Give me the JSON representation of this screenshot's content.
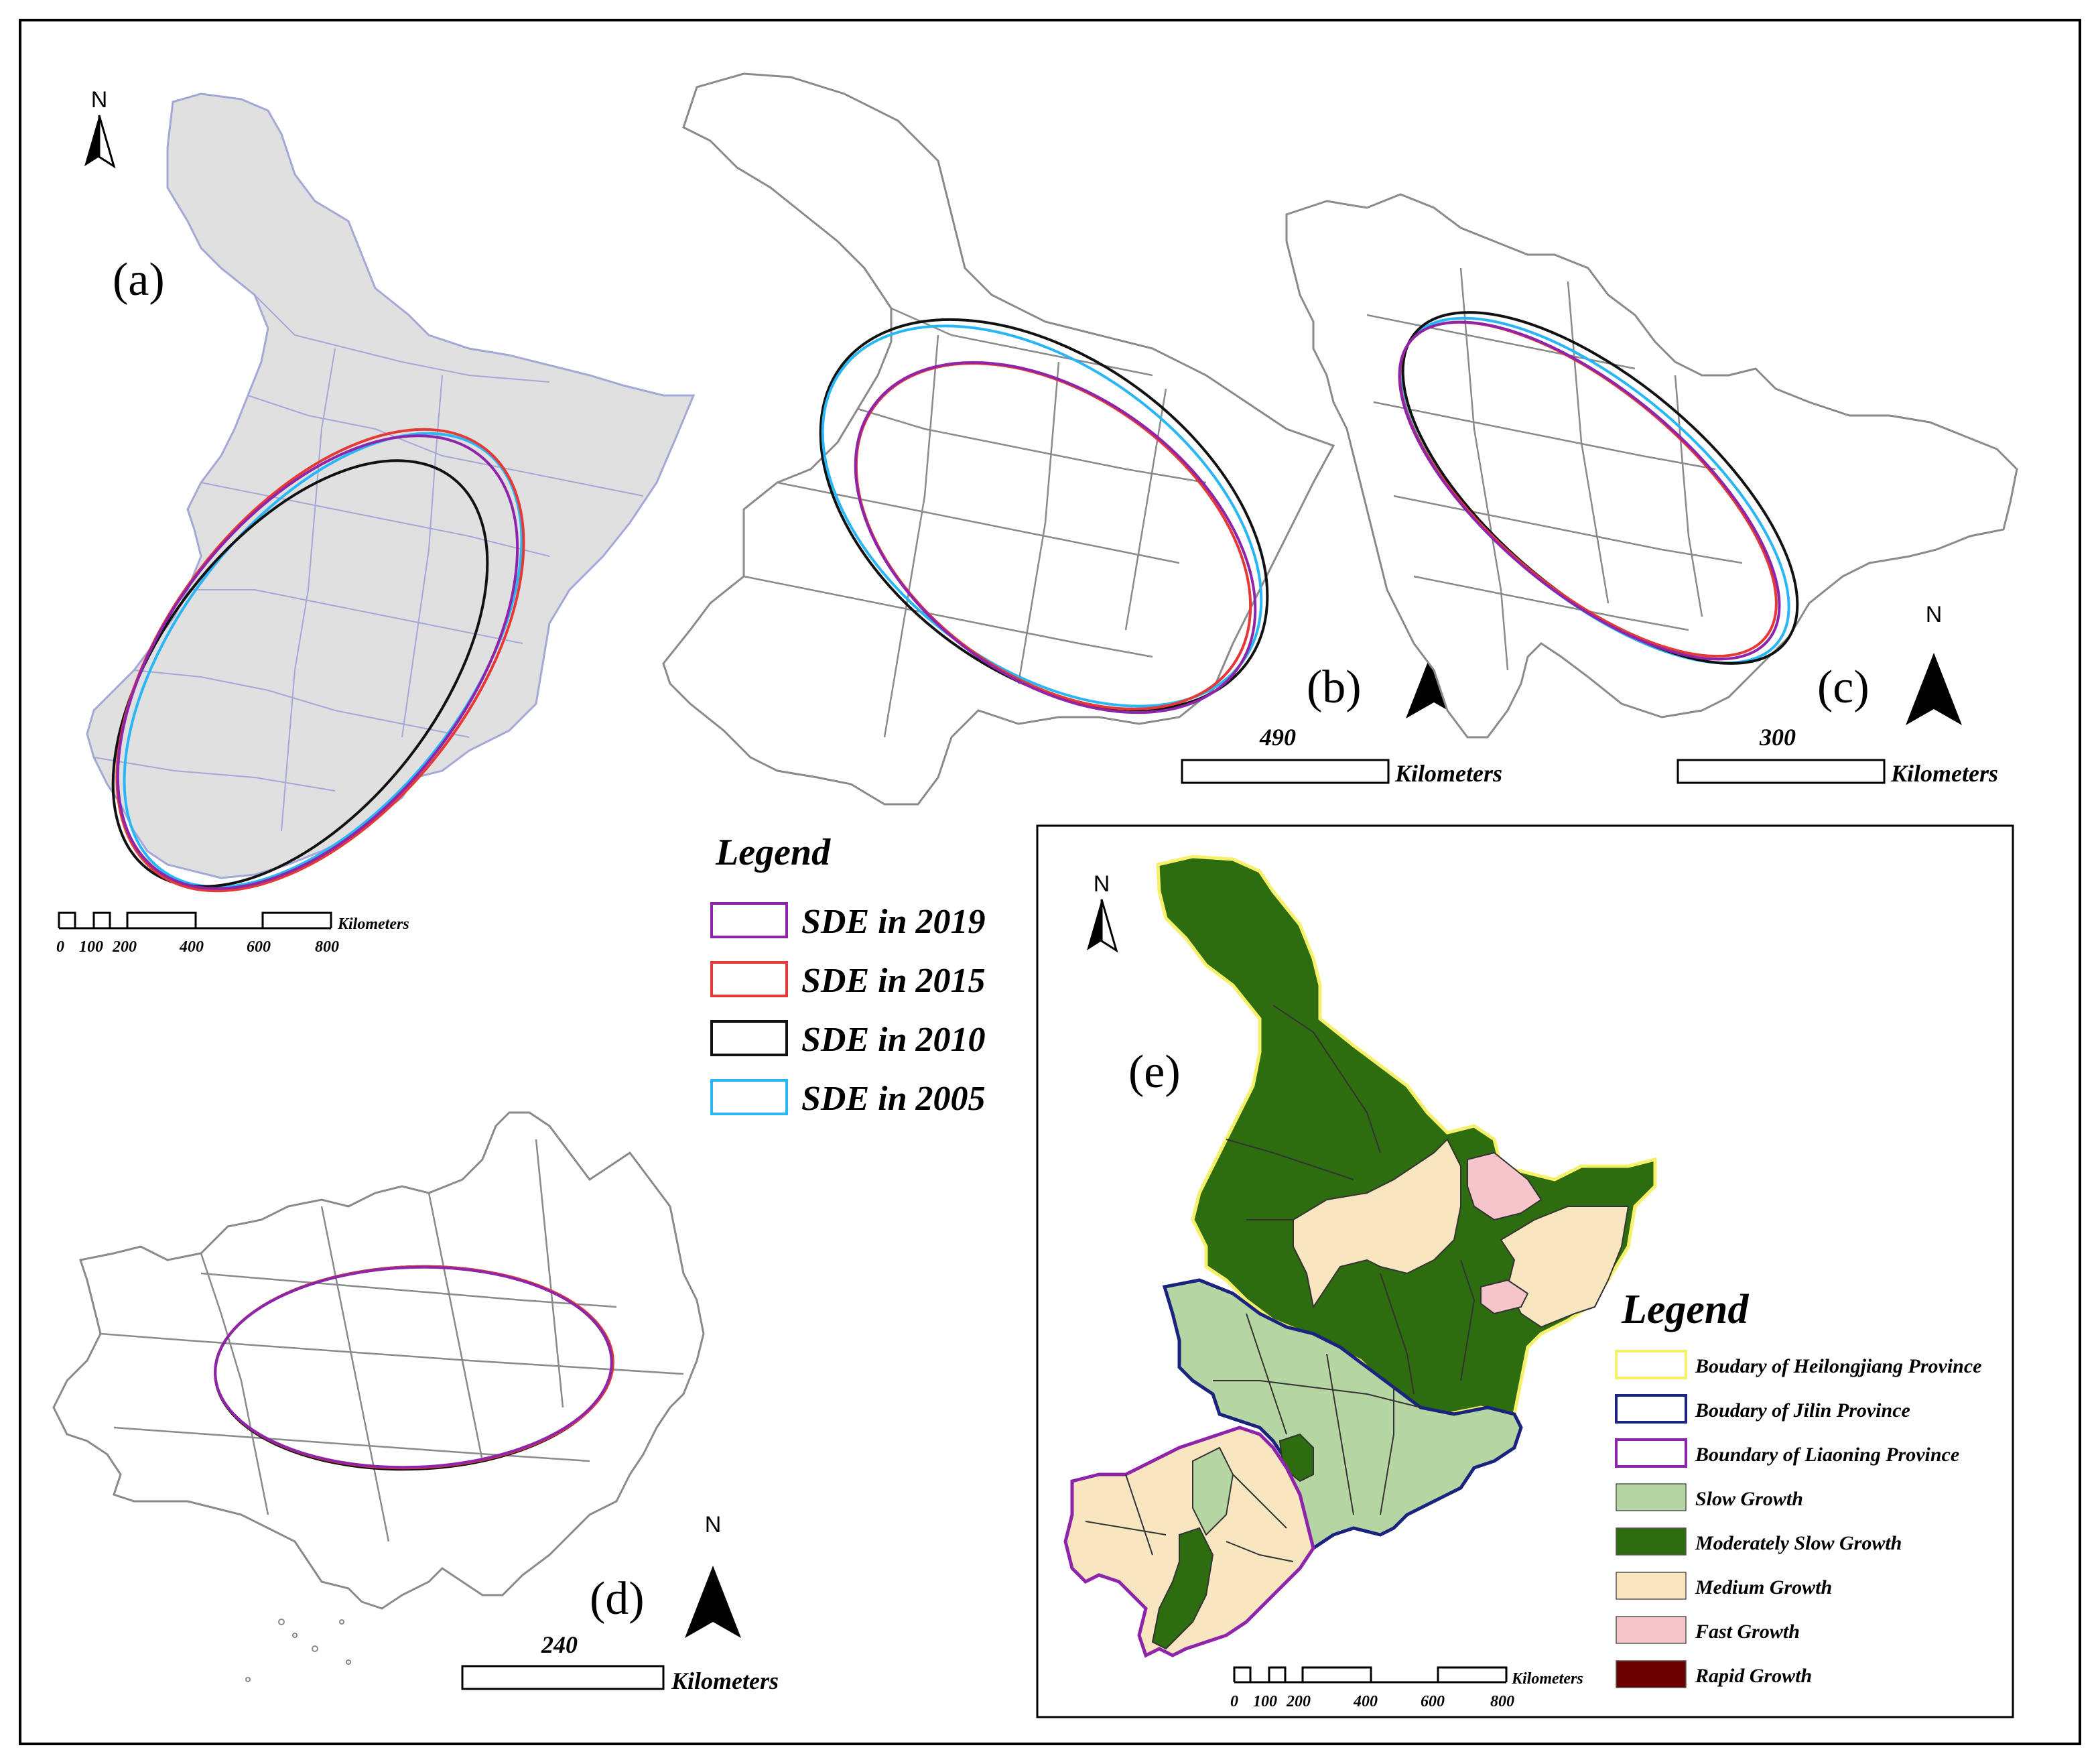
{
  "panels": {
    "a": {
      "label": "(a)"
    },
    "b": {
      "label": "(b)",
      "scale_value": "490"
    },
    "c": {
      "label": "(c)",
      "scale_value": "300"
    },
    "d": {
      "label": "(d)",
      "scale_value": "240"
    },
    "e": {
      "label": "(e)"
    }
  },
  "north_label": "N",
  "scale_unit": "Kilometers",
  "segmented_scale_ticks": [
    "0",
    "100",
    "200",
    "400",
    "600",
    "800"
  ],
  "sde_legend": {
    "title": "Legend",
    "items": [
      {
        "label": "SDE in 2019",
        "color": "#8e24aa"
      },
      {
        "label": "SDE in 2015",
        "color": "#e53935"
      },
      {
        "label": "SDE in 2010",
        "color": "#111111"
      },
      {
        "label": "SDE in 2005",
        "color": "#29b6f6"
      }
    ]
  },
  "growth_legend": {
    "title": "Legend",
    "boundaries": [
      {
        "label": "Boudary of Heilongjiang Province",
        "color": "#f7f06a"
      },
      {
        "label": "Boudary of Jilin Province",
        "color": "#1a237e"
      },
      {
        "label": "Boundary of Liaoning Province",
        "color": "#8e24aa"
      }
    ],
    "classes": [
      {
        "label": "Slow Growth",
        "color": "#b5d6a3"
      },
      {
        "label": "Moderately Slow Growth",
        "color": "#2e6d0f"
      },
      {
        "label": "Medium Growth",
        "color": "#f7e6c0"
      },
      {
        "label": "Fast Growth",
        "color": "#f6c5cc"
      },
      {
        "label": "Rapid Growth",
        "color": "#6b0000"
      }
    ]
  }
}
